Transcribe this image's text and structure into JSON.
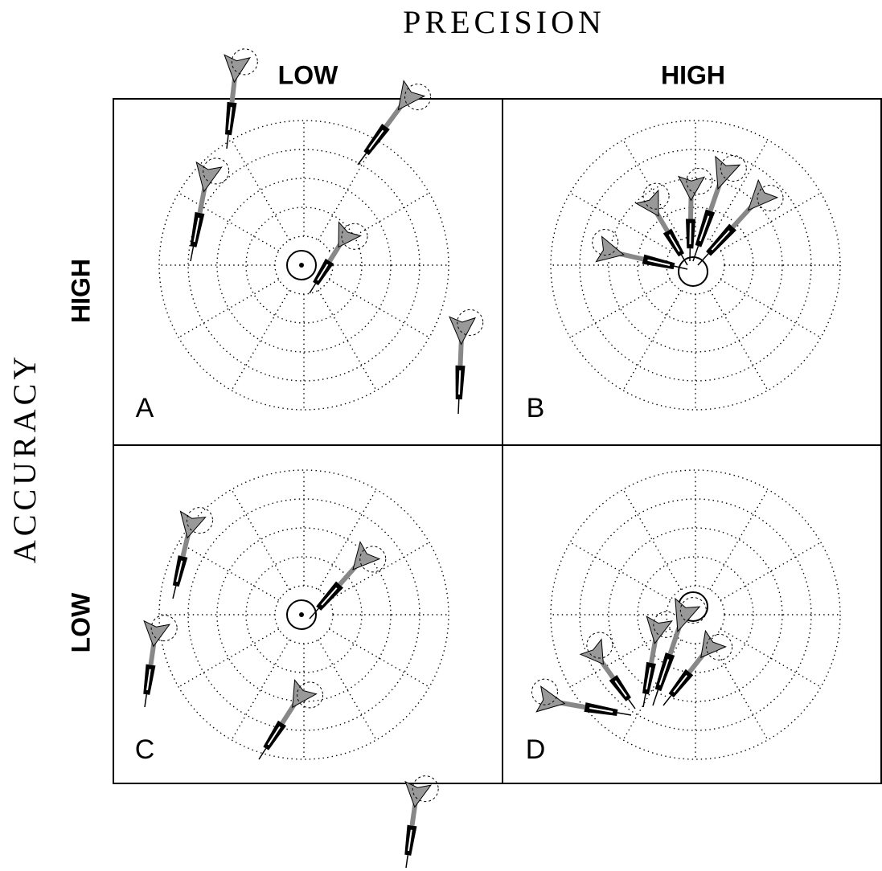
{
  "title": "PRECISION",
  "columns": [
    "LOW",
    "HIGH"
  ],
  "row_title": "ACCURACY",
  "rows": [
    "HIGH",
    "LOW"
  ],
  "panels": [
    "A",
    "B",
    "C",
    "D"
  ]
}
